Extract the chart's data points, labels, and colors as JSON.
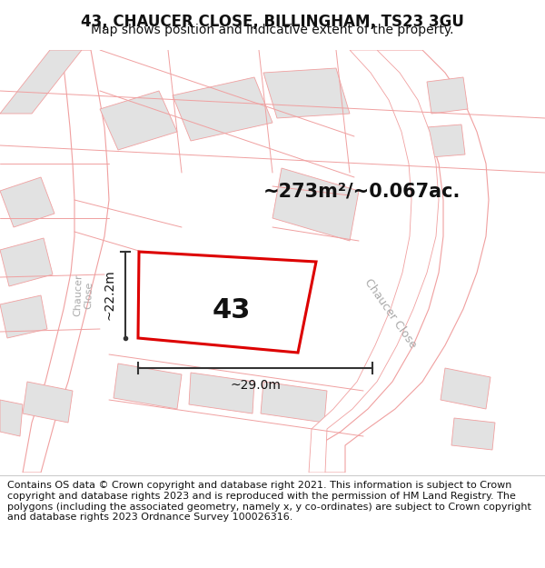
{
  "title": "43, CHAUCER CLOSE, BILLINGHAM, TS23 3GU",
  "subtitle": "Map shows position and indicative extent of the property.",
  "footer": "Contains OS data © Crown copyright and database right 2021. This information is subject to Crown copyright and database rights 2023 and is reproduced with the permission of HM Land Registry. The polygons (including the associated geometry, namely x, y co-ordinates) are subject to Crown copyright and database rights 2023 Ordnance Survey 100026316.",
  "area_label": "~273m²/~0.067ac.",
  "property_number": "43",
  "dim_width": "~29.0m",
  "dim_height": "~22.2m",
  "bg_color": "#ffffff",
  "map_bg": "#f0f0f0",
  "plot_outline_color": "#dd0000",
  "dim_color": "#333333",
  "text_color": "#111111",
  "road_line_color": "#f0a0a0",
  "road_fill_color": "#ffffff",
  "block_fill": "#e2e2e2",
  "block_edge": "#f0a0a0",
  "street_label_color": "#aaaaaa",
  "title_fontsize": 12,
  "subtitle_fontsize": 10,
  "footer_fontsize": 8
}
